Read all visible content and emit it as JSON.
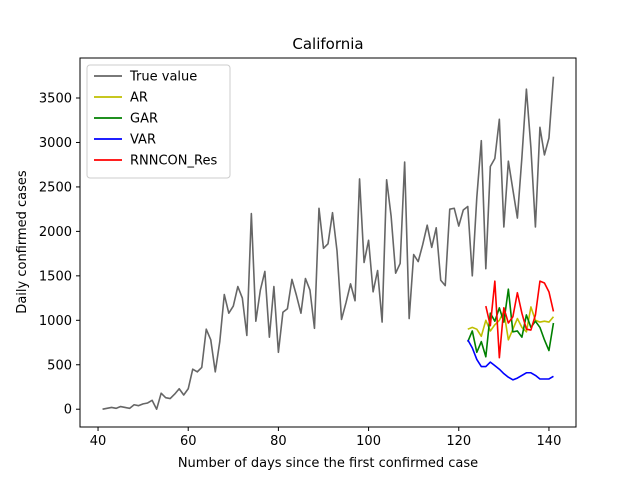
{
  "chart_data": {
    "type": "line",
    "title": "California",
    "xlabel": "Number of days since the first confirmed case",
    "ylabel": "Daily confirmed cases",
    "xlim": [
      36,
      146
    ],
    "ylim": [
      -200,
      3950
    ],
    "xticks": [
      40,
      60,
      80,
      100,
      120,
      140
    ],
    "yticks": [
      0,
      500,
      1000,
      1500,
      2000,
      2500,
      3000,
      3500
    ],
    "grid": false,
    "legend_position": "top-left",
    "series": [
      {
        "name": "True value",
        "color": "#666666",
        "x": [
          41,
          42,
          43,
          44,
          45,
          46,
          47,
          48,
          49,
          50,
          51,
          52,
          53,
          54,
          55,
          56,
          57,
          58,
          59,
          60,
          61,
          62,
          63,
          64,
          65,
          66,
          67,
          68,
          69,
          70,
          71,
          72,
          73,
          74,
          75,
          76,
          77,
          78,
          79,
          80,
          81,
          82,
          83,
          84,
          85,
          86,
          87,
          88,
          89,
          90,
          91,
          92,
          93,
          94,
          95,
          96,
          97,
          98,
          99,
          100,
          101,
          102,
          103,
          104,
          105,
          106,
          107,
          108,
          109,
          110,
          111,
          112,
          113,
          114,
          115,
          116,
          117,
          118,
          119,
          120,
          121,
          122,
          123,
          124,
          125,
          126,
          127,
          128,
          129,
          130,
          131,
          132,
          133,
          134,
          135,
          136,
          137,
          138,
          139,
          140,
          141
        ],
        "y": [
          0,
          10,
          20,
          10,
          30,
          20,
          10,
          50,
          40,
          60,
          70,
          100,
          0,
          180,
          130,
          120,
          170,
          230,
          160,
          230,
          450,
          420,
          470,
          900,
          780,
          420,
          760,
          1290,
          1080,
          1160,
          1380,
          1250,
          830,
          2200,
          990,
          1340,
          1550,
          810,
          1380,
          640,
          1090,
          1130,
          1460,
          1280,
          1080,
          1470,
          1340,
          910,
          2260,
          1810,
          1860,
          2210,
          1780,
          1010,
          1200,
          1410,
          1220,
          2590,
          1650,
          1900,
          1320,
          1560,
          980,
          2580,
          2170,
          1530,
          1640,
          2780,
          1020,
          1740,
          1660,
          1850,
          2070,
          1820,
          2040,
          1450,
          1390,
          2250,
          2260,
          2060,
          2240,
          2280,
          1500,
          2380,
          3020,
          1580,
          2730,
          2820,
          3260,
          2050,
          2790,
          2470,
          2150,
          2830,
          3600,
          2940,
          2050,
          3170,
          2860,
          3050,
          3740
        ]
      },
      {
        "name": "AR",
        "color": "#bfbf00",
        "x": [
          122,
          123,
          124,
          125,
          126,
          127,
          128,
          129,
          130,
          131,
          132,
          133,
          134,
          135,
          136,
          137,
          138,
          139,
          140,
          141
        ],
        "y": [
          900,
          920,
          900,
          820,
          1000,
          880,
          950,
          1000,
          1100,
          780,
          900,
          1020,
          920,
          870,
          1150,
          1000,
          980,
          990,
          980,
          1040
        ]
      },
      {
        "name": "GAR",
        "color": "#008000",
        "x": [
          122,
          123,
          124,
          125,
          126,
          127,
          128,
          129,
          130,
          131,
          132,
          133,
          134,
          135,
          136,
          137,
          138,
          139,
          140,
          141
        ],
        "y": [
          760,
          880,
          640,
          760,
          590,
          1080,
          990,
          1140,
          980,
          1350,
          870,
          880,
          810,
          1060,
          920,
          990,
          920,
          780,
          660,
          970
        ]
      },
      {
        "name": "VAR",
        "color": "#0000ff",
        "x": [
          122,
          123,
          124,
          125,
          126,
          127,
          128,
          129,
          130,
          131,
          132,
          133,
          134,
          135,
          136,
          137,
          138,
          139,
          140,
          141
        ],
        "y": [
          780,
          690,
          560,
          480,
          480,
          530,
          490,
          450,
          400,
          360,
          330,
          350,
          380,
          410,
          410,
          380,
          340,
          340,
          340,
          370
        ]
      },
      {
        "name": "RNNCON_Res",
        "color": "#ff0000",
        "x": [
          126,
          127,
          128,
          129,
          130,
          131,
          132,
          133,
          134,
          135,
          136,
          137,
          138,
          139,
          140,
          141
        ],
        "y": [
          1160,
          940,
          1440,
          580,
          1140,
          970,
          1040,
          1310,
          1080,
          900,
          890,
          1060,
          1440,
          1420,
          1320,
          1100
        ]
      }
    ]
  }
}
